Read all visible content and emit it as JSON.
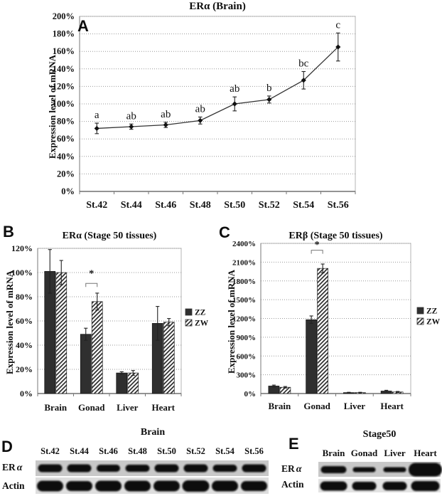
{
  "panels": {
    "A": "A",
    "B": "B",
    "C": "C",
    "D": "D",
    "E": "E"
  },
  "chart_data": [
    {
      "id": "A",
      "type": "line",
      "title": "ERα (Brain)",
      "ylabel": "Expression level of mRNA",
      "xlabel": "",
      "categories": [
        "St.42",
        "St.44",
        "St.46",
        "St.48",
        "St.50",
        "St.52",
        "St.54",
        "St.56"
      ],
      "values": [
        72,
        74,
        76,
        81,
        100,
        105,
        127,
        165
      ],
      "errors": [
        6,
        3,
        3,
        4,
        8,
        4,
        10,
        16
      ],
      "point_labels": [
        "a",
        "ab",
        "ab",
        "ab",
        "ab",
        "b",
        "bc",
        "c"
      ],
      "ylim": [
        0,
        200
      ],
      "ytick_step": 20,
      "ytick_suffix": "%",
      "grid": true,
      "legend_position": null,
      "marker": "diamond"
    },
    {
      "id": "B",
      "type": "bar",
      "title": "ERα (Stage 50 tissues)",
      "ylabel": "Expression level of mRNA",
      "categories": [
        "Brain",
        "Gonad",
        "Liver",
        "Heart"
      ],
      "series": [
        {
          "name": "ZZ",
          "style": "solid",
          "values": [
            101,
            49,
            17,
            58
          ],
          "errors": [
            18,
            5,
            1,
            14
          ]
        },
        {
          "name": "ZW",
          "style": "hatch",
          "values": [
            100,
            76,
            17,
            59
          ],
          "errors": [
            10,
            7,
            2,
            3
          ]
        }
      ],
      "ylim": [
        0,
        120
      ],
      "ytick_step": 20,
      "ytick_suffix": "%",
      "grid": true,
      "legend_position": "right",
      "significance": {
        "category": "Gonad",
        "label": "*",
        "bracket_value": 91,
        "star_value": 99
      }
    },
    {
      "id": "C",
      "type": "bar",
      "title": "ERβ (Stage 50 tissues)",
      "ylabel": "Expression level of mRNA",
      "categories": [
        "Brain",
        "Gonad",
        "Liver",
        "Heart"
      ],
      "series": [
        {
          "name": "ZZ",
          "style": "solid",
          "values": [
            120,
            1180,
            15,
            40
          ],
          "errors": [
            15,
            60,
            5,
            12
          ]
        },
        {
          "name": "ZW",
          "style": "hatch",
          "values": [
            100,
            2000,
            15,
            25
          ],
          "errors": [
            12,
            70,
            5,
            8
          ]
        }
      ],
      "ylim": [
        0,
        2400
      ],
      "ytick_step": 300,
      "ytick_suffix": "%",
      "grid": true,
      "legend_position": "right",
      "significance": {
        "category": "Gonad",
        "label": "*",
        "bracket_value": 2290,
        "star_value": 2380
      }
    }
  ],
  "blots": {
    "D": {
      "panel": "D",
      "title": "Brain",
      "lanes": [
        "St.42",
        "St.44",
        "St.46",
        "St.48",
        "St.50",
        "St.52",
        "St.54",
        "St.56"
      ],
      "rows": [
        {
          "prefix": "ER",
          "symbol": "α",
          "band_heights": [
            11,
            11,
            10,
            10,
            11,
            11,
            10,
            11
          ],
          "band_widths": [
            34,
            34,
            33,
            34,
            34,
            34,
            34,
            34
          ]
        },
        {
          "prefix": "Actin",
          "symbol": "",
          "band_heights": [
            15,
            14,
            15,
            15,
            15,
            16,
            15,
            14
          ],
          "band_widths": [
            37,
            37,
            37,
            37,
            37,
            38,
            37,
            37
          ]
        }
      ]
    },
    "E": {
      "panel": "E",
      "title": "Stage50",
      "lanes": [
        "Brain",
        "Gonad",
        "Liver",
        "Heart"
      ],
      "rows": [
        {
          "prefix": "ER",
          "symbol": "α",
          "band_heights": [
            10,
            7,
            7,
            19
          ],
          "band_widths": [
            36,
            32,
            32,
            47
          ]
        },
        {
          "prefix": "Actin",
          "symbol": "",
          "band_heights": [
            13,
            12,
            12,
            14
          ],
          "band_widths": [
            38,
            34,
            34,
            40
          ]
        }
      ]
    }
  },
  "colors": {
    "bar_solid": "#2f2f2f",
    "line": "#333333",
    "grid": "#999999",
    "plot_border": "#b5b5b5",
    "text": "#111111",
    "strip_dark": "#c8c8c8",
    "strip_light": "#dedede"
  }
}
